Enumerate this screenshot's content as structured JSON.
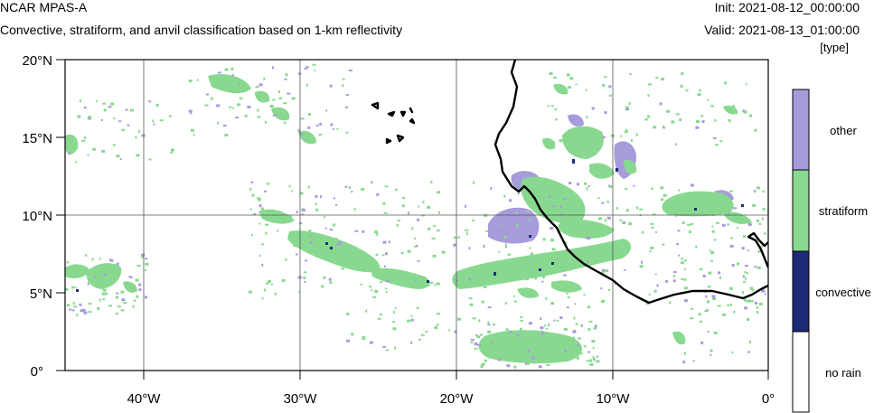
{
  "header": {
    "title": "NCAR MPAS-A",
    "subtitle": "Convective, stratiform, and anvil classification based on 1-km reflectivity",
    "init": "Init: 2021-08-12_00:00:00",
    "valid": "Valid: 2021-08-13_01:00:00",
    "units": "[type]"
  },
  "map": {
    "lat_labels": [
      "20°N",
      "15°N",
      "10°N",
      "5°N",
      "0°"
    ],
    "lon_labels": [
      "40°W",
      "30°W",
      "20°W",
      "10°W",
      "0°"
    ],
    "lon_range": [
      -45,
      0
    ],
    "lat_range": [
      0,
      20
    ]
  },
  "legend": {
    "categories": [
      {
        "name": "other",
        "color": "#a89bdc"
      },
      {
        "name": "stratiform",
        "color": "#88d98f"
      },
      {
        "name": "convective",
        "color": "#1c2a78"
      },
      {
        "name": "no rain",
        "color": "#ffffff"
      }
    ]
  }
}
